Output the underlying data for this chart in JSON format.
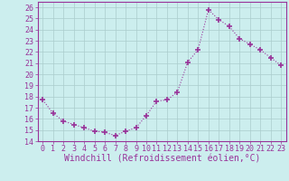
{
  "x": [
    0,
    1,
    2,
    3,
    4,
    5,
    6,
    7,
    8,
    9,
    10,
    11,
    12,
    13,
    14,
    15,
    16,
    17,
    18,
    19,
    20,
    21,
    22,
    23
  ],
  "y": [
    17.7,
    16.5,
    15.8,
    15.5,
    15.2,
    14.9,
    14.8,
    14.5,
    14.9,
    15.2,
    16.3,
    17.6,
    17.7,
    18.4,
    21.1,
    22.2,
    25.8,
    24.9,
    24.3,
    23.2,
    22.7,
    22.2,
    21.5,
    20.8
  ],
  "line_color": "#993399",
  "marker": "P",
  "marker_color": "#993399",
  "bg_color": "#cceeee",
  "grid_color": "#aacccc",
  "xlabel": "Windchill (Refroidissement éolien,°C)",
  "xlim": [
    -0.5,
    23.5
  ],
  "ylim": [
    14,
    26.5
  ],
  "yticks": [
    14,
    15,
    16,
    17,
    18,
    19,
    20,
    21,
    22,
    23,
    24,
    25,
    26
  ],
  "xticks": [
    0,
    1,
    2,
    3,
    4,
    5,
    6,
    7,
    8,
    9,
    10,
    11,
    12,
    13,
    14,
    15,
    16,
    17,
    18,
    19,
    20,
    21,
    22,
    23
  ],
  "tick_color": "#993399",
  "label_color": "#993399",
  "spine_color": "#993399",
  "xlabel_fontsize": 7.0,
  "tick_fontsize": 6.0
}
